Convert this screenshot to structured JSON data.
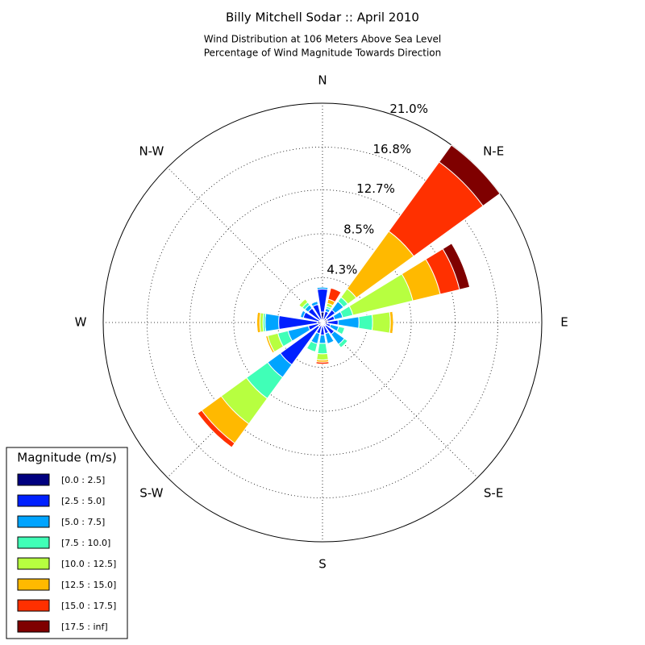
{
  "chart_data": {
    "type": "windrose",
    "title": "Billy Mitchell Sodar :: April 2010",
    "subtitle": [
      "Wind Distribution at 106 Meters Above Sea Level",
      "Percentage of Wind Magnitude Towards Direction"
    ],
    "direction_labels": [
      "N",
      "N-E",
      "E",
      "S-E",
      "S",
      "S-W",
      "W",
      "N-W"
    ],
    "x": [
      0,
      22.5,
      45,
      67.5,
      90,
      112.5,
      135,
      157.5,
      180,
      202.5,
      225,
      247.5,
      270,
      292.5,
      315,
      337.5
    ],
    "ylim": [
      0,
      21.0
    ],
    "yticks": [
      {
        "value": 4.3,
        "label": "4.3%"
      },
      {
        "value": 8.5,
        "label": "8.5%"
      },
      {
        "value": 12.7,
        "label": "12.7%"
      },
      {
        "value": 16.8,
        "label": "16.8%"
      },
      {
        "value": 21.0,
        "label": "21.0%"
      }
    ],
    "grid": true,
    "legend_title": "Magnitude (m/s)",
    "legend_position": "lower left",
    "series": [
      {
        "name": "[0.0 : 2.5]",
        "color": "#00007f",
        "values": [
          1.0,
          0.3,
          0.5,
          0.5,
          0.5,
          0.3,
          0.4,
          0.3,
          0.4,
          0.3,
          0.5,
          0.4,
          0.5,
          0.3,
          0.3,
          0.3
        ]
      },
      {
        "name": "[2.5 : 5.0]",
        "color": "#0020ff",
        "values": [
          2.2,
          0.8,
          1.0,
          0.7,
          1.0,
          0.5,
          1.0,
          0.8,
          0.8,
          0.8,
          4.5,
          1.0,
          3.7,
          1.6,
          1.4,
          1.5
        ]
      },
      {
        "name": "[5.0 : 7.5]",
        "color": "#00a4ff",
        "values": [
          0.2,
          0.3,
          1.0,
          0.8,
          2.0,
          0.8,
          1.2,
          1.0,
          0.8,
          1.0,
          1.5,
          2.0,
          1.3,
          0.3,
          0.4,
          0.3
        ]
      },
      {
        "name": "[7.5 : 10.0]",
        "color": "#40ffb7",
        "values": [
          0,
          0.2,
          0.5,
          1.0,
          1.3,
          0.6,
          0.4,
          0,
          1.0,
          0.8,
          2.5,
          1.0,
          0.2,
          0,
          0.3,
          0
        ]
      },
      {
        "name": "[10.0 : 12.5]",
        "color": "#b7ff40",
        "values": [
          0,
          0.3,
          1.0,
          5.9,
          1.7,
          0,
          0,
          0,
          0.6,
          0,
          3.0,
          1.0,
          0.3,
          0,
          0.4,
          0
        ]
      },
      {
        "name": "[12.5 : 15.0]",
        "color": "#ffb900",
        "values": [
          0,
          0.4,
          6.8,
          2.7,
          0.3,
          0,
          0,
          0,
          0.2,
          0,
          2.3,
          0.2,
          0.3,
          0,
          0,
          0
        ]
      },
      {
        "name": "[15.0 : 17.5]",
        "color": "#ff3000",
        "values": [
          0,
          1.1,
          8.2,
          1.9,
          0,
          0,
          0,
          0,
          0.2,
          0,
          0.5,
          0,
          0,
          0,
          0,
          0
        ]
      },
      {
        "name": "[17.5 : inf]",
        "color": "#7f0000",
        "values": [
          0,
          0,
          2.0,
          1.0,
          0,
          0,
          0,
          0,
          0,
          0,
          0,
          0,
          0,
          0,
          0,
          0
        ]
      }
    ]
  }
}
